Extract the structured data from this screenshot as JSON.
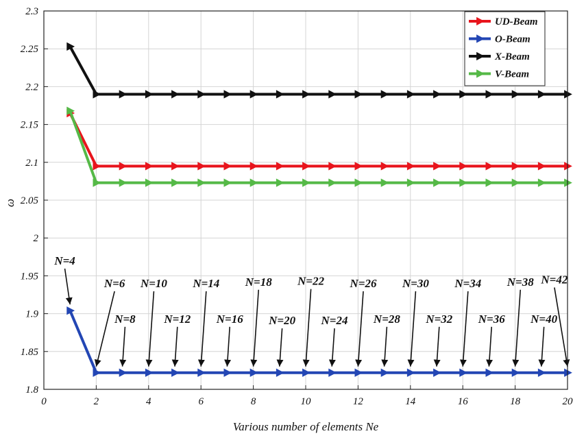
{
  "chart_data": {
    "type": "line",
    "title": "",
    "xlabel": "Various number of elements Ne",
    "ylabel": "ω",
    "xlim": [
      0,
      20
    ],
    "ylim": [
      1.8,
      2.3
    ],
    "xticks": [
      0,
      2,
      4,
      6,
      8,
      10,
      12,
      14,
      16,
      18,
      20
    ],
    "yticks": [
      1.8,
      1.85,
      1.9,
      1.95,
      2,
      2.05,
      2.1,
      2.15,
      2.2,
      2.25,
      2.3
    ],
    "grid": true,
    "legend_position": "top-right",
    "x": [
      1,
      2,
      3,
      4,
      5,
      6,
      7,
      8,
      9,
      10,
      11,
      12,
      13,
      14,
      15,
      16,
      17,
      18,
      19,
      20
    ],
    "series": [
      {
        "name": "UD-Beam",
        "color": "#e8141c",
        "values": [
          2.165,
          2.095,
          2.095,
          2.095,
          2.095,
          2.095,
          2.095,
          2.095,
          2.095,
          2.095,
          2.095,
          2.095,
          2.095,
          2.095,
          2.095,
          2.095,
          2.095,
          2.095,
          2.095,
          2.095
        ]
      },
      {
        "name": "O-Beam",
        "color": "#2346b4",
        "values": [
          1.904,
          1.822,
          1.822,
          1.822,
          1.822,
          1.822,
          1.822,
          1.822,
          1.822,
          1.822,
          1.822,
          1.822,
          1.822,
          1.822,
          1.822,
          1.822,
          1.822,
          1.822,
          1.822,
          1.822
        ]
      },
      {
        "name": "X-Beam",
        "color": "#111111",
        "values": [
          2.253,
          2.19,
          2.19,
          2.19,
          2.19,
          2.19,
          2.19,
          2.19,
          2.19,
          2.19,
          2.19,
          2.19,
          2.19,
          2.19,
          2.19,
          2.19,
          2.19,
          2.19,
          2.19,
          2.19
        ]
      },
      {
        "name": "V-Beam",
        "color": "#55b947",
        "values": [
          2.168,
          2.073,
          2.073,
          2.073,
          2.073,
          2.073,
          2.073,
          2.073,
          2.073,
          2.073,
          2.073,
          2.073,
          2.073,
          2.073,
          2.073,
          2.073,
          2.073,
          2.073,
          2.073,
          2.073
        ]
      }
    ],
    "annotations": [
      {
        "label": "N=4",
        "x": 1,
        "y": 1.904,
        "ty": 1.965,
        "tx": 0.8
      },
      {
        "label": "N=6",
        "x": 2,
        "y": 1.822,
        "ty": 1.935,
        "tx": 2.7
      },
      {
        "label": "N=8",
        "x": 3,
        "y": 1.822,
        "ty": 1.888,
        "tx": 3.1
      },
      {
        "label": "N=10",
        "x": 4,
        "y": 1.822,
        "ty": 1.935,
        "tx": 4.2
      },
      {
        "label": "N=12",
        "x": 5,
        "y": 1.822,
        "ty": 1.888,
        "tx": 5.1
      },
      {
        "label": "N=14",
        "x": 6,
        "y": 1.822,
        "ty": 1.935,
        "tx": 6.2
      },
      {
        "label": "N=16",
        "x": 7,
        "y": 1.822,
        "ty": 1.888,
        "tx": 7.1
      },
      {
        "label": "N=18",
        "x": 8,
        "y": 1.822,
        "ty": 1.937,
        "tx": 8.2
      },
      {
        "label": "N=20",
        "x": 9,
        "y": 1.822,
        "ty": 1.886,
        "tx": 9.1
      },
      {
        "label": "N=22",
        "x": 10,
        "y": 1.822,
        "ty": 1.938,
        "tx": 10.2
      },
      {
        "label": "N=24",
        "x": 11,
        "y": 1.822,
        "ty": 1.886,
        "tx": 11.1
      },
      {
        "label": "N=26",
        "x": 12,
        "y": 1.822,
        "ty": 1.935,
        "tx": 12.2
      },
      {
        "label": "N=28",
        "x": 13,
        "y": 1.822,
        "ty": 1.888,
        "tx": 13.1
      },
      {
        "label": "N=30",
        "x": 14,
        "y": 1.822,
        "ty": 1.935,
        "tx": 14.2
      },
      {
        "label": "N=32",
        "x": 15,
        "y": 1.822,
        "ty": 1.888,
        "tx": 15.1
      },
      {
        "label": "N=34",
        "x": 16,
        "y": 1.822,
        "ty": 1.935,
        "tx": 16.2
      },
      {
        "label": "N=36",
        "x": 17,
        "y": 1.822,
        "ty": 1.888,
        "tx": 17.1
      },
      {
        "label": "N=38",
        "x": 18,
        "y": 1.822,
        "ty": 1.937,
        "tx": 18.2
      },
      {
        "label": "N=40",
        "x": 19,
        "y": 1.822,
        "ty": 1.888,
        "tx": 19.1
      },
      {
        "label": "N=42",
        "x": 20,
        "y": 1.822,
        "ty": 1.94,
        "tx": 19.5
      }
    ]
  }
}
